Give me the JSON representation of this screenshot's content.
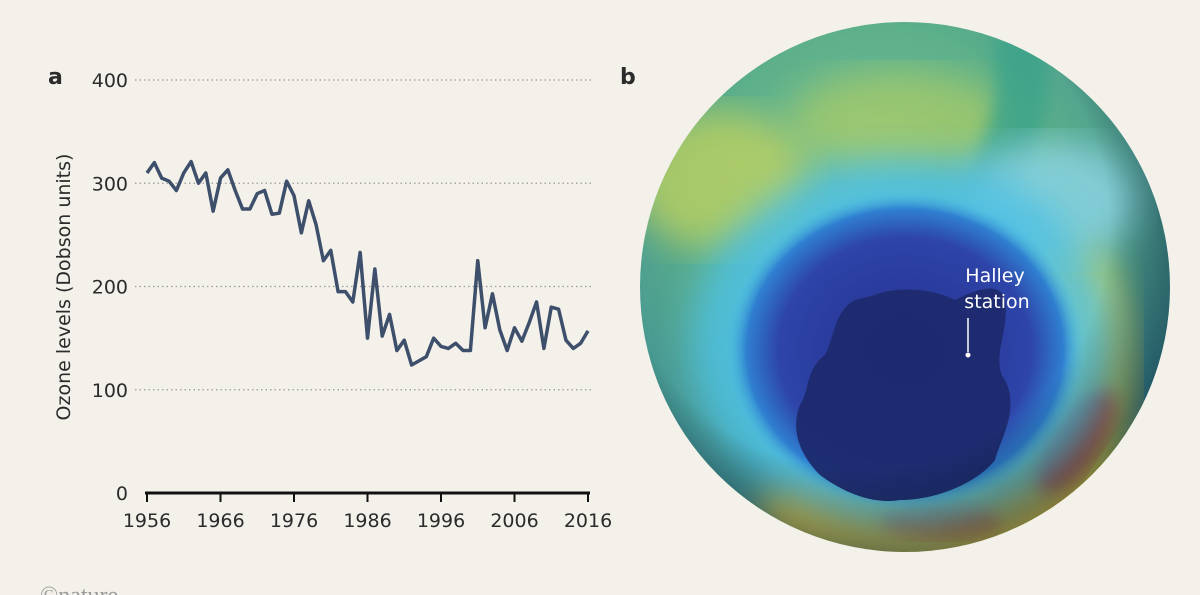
{
  "chart_data": {
    "type": "line",
    "panel_label": "a",
    "ylabel": "Ozone levels (Dobson units)",
    "x": [
      1956,
      1957,
      1958,
      1959,
      1960,
      1961,
      1962,
      1963,
      1964,
      1965,
      1966,
      1967,
      1968,
      1969,
      1970,
      1971,
      1972,
      1973,
      1974,
      1975,
      1976,
      1977,
      1978,
      1979,
      1980,
      1981,
      1982,
      1983,
      1984,
      1985,
      1986,
      1987,
      1988,
      1989,
      1990,
      1991,
      1992,
      1993,
      1994,
      1995,
      1996,
      1997,
      1998,
      1999,
      2000,
      2001,
      2002,
      2003,
      2004,
      2005,
      2006,
      2007,
      2008,
      2009,
      2010,
      2011,
      2012,
      2013,
      2014,
      2015,
      2016
    ],
    "values": [
      310,
      320,
      305,
      302,
      293,
      310,
      321,
      300,
      310,
      273,
      305,
      313,
      293,
      275,
      275,
      290,
      293,
      270,
      271,
      302,
      288,
      252,
      283,
      260,
      225,
      235,
      195,
      195,
      185,
      233,
      150,
      217,
      152,
      173,
      138,
      148,
      124,
      128,
      132,
      150,
      142,
      140,
      145,
      138,
      138,
      225,
      160,
      193,
      158,
      138,
      160,
      147,
      165,
      185,
      140,
      180,
      178,
      148,
      140,
      145,
      157
    ],
    "color": "#3d4f6b",
    "xlim": [
      1956,
      2016
    ],
    "xticks": [
      1956,
      1966,
      1976,
      1986,
      1996,
      2006,
      2016
    ],
    "ylim": [
      0,
      400
    ],
    "yticks": [
      0,
      100,
      200,
      300,
      400
    ],
    "grid": true
  },
  "globe": {
    "panel_label": "b",
    "annotation_lines": [
      "Halley",
      "station"
    ]
  },
  "credit": "©nature"
}
